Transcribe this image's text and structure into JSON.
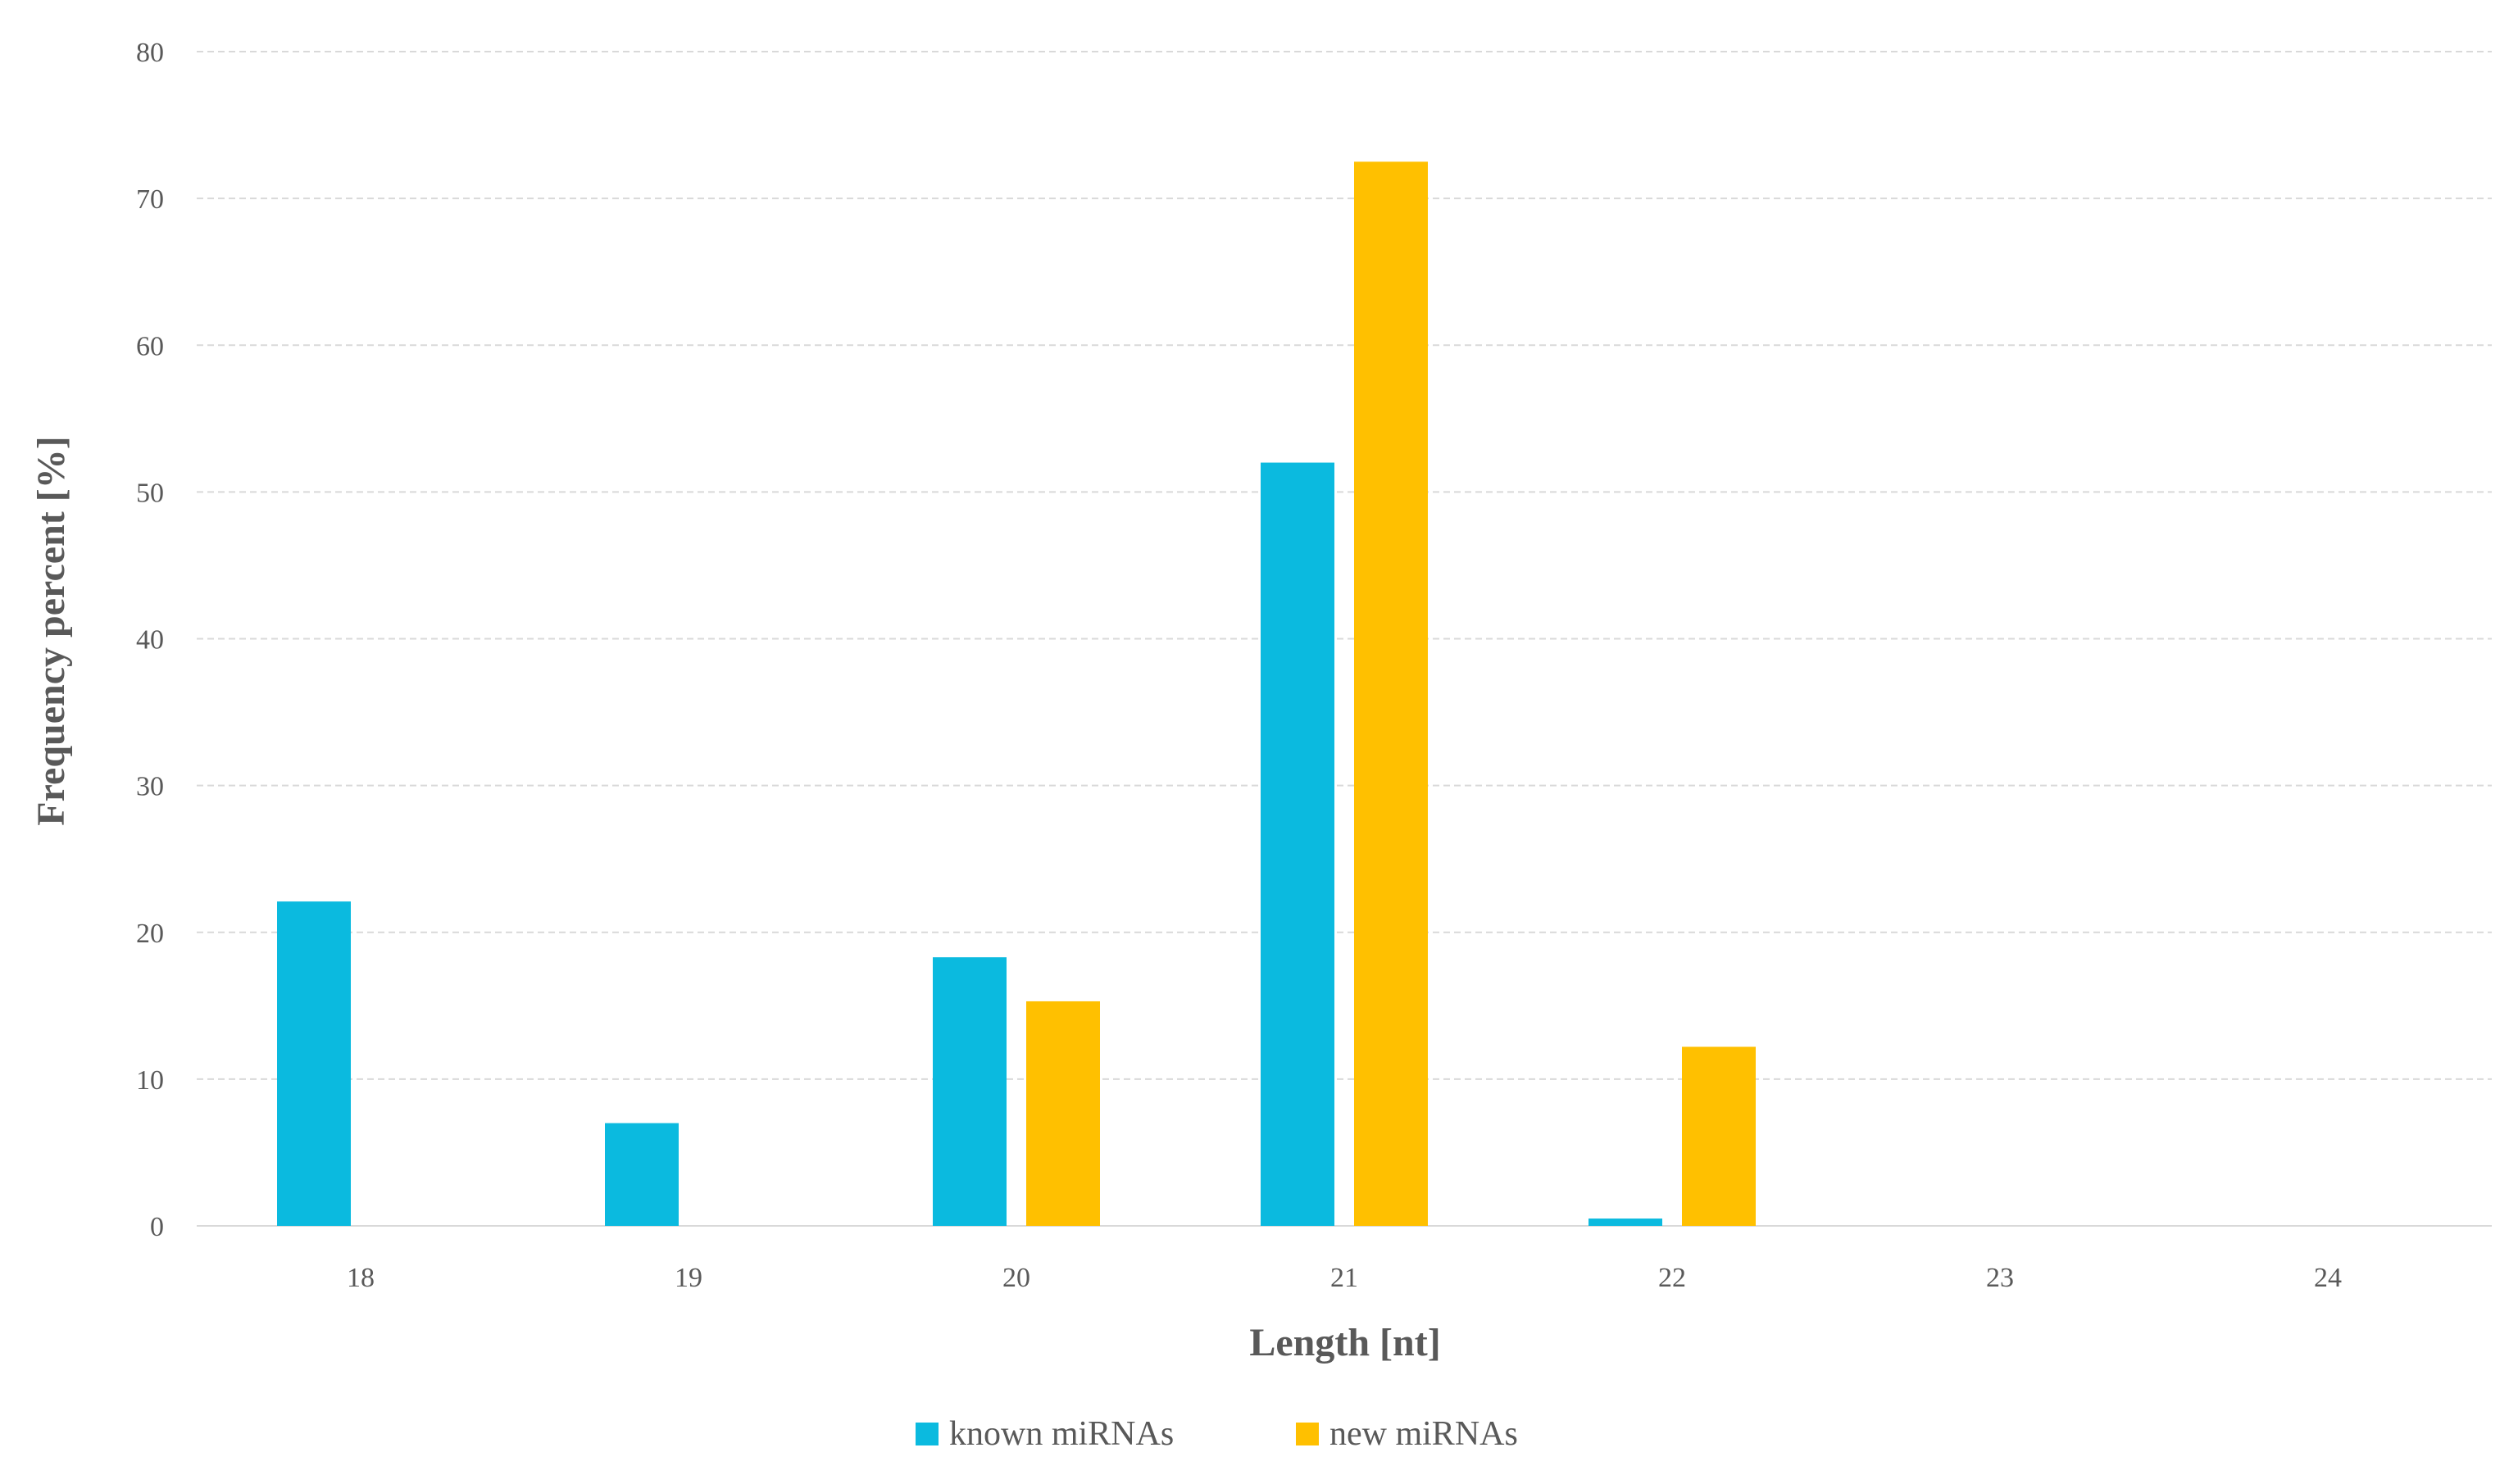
{
  "chart_data": {
    "type": "bar",
    "title": "",
    "xlabel": "Length [nt]",
    "ylabel": "Frequency percent [%]",
    "categories": [
      "18",
      "19",
      "20",
      "21",
      "22",
      "23",
      "24"
    ],
    "ylim": [
      0,
      80
    ],
    "yticks": [
      "0",
      "10",
      "20",
      "30",
      "40",
      "50",
      "60",
      "70",
      "80"
    ],
    "grid": true,
    "legend_position": "bottom",
    "series": [
      {
        "name": "known miRNAs",
        "color": "#0bbadf",
        "values": [
          22.1,
          7.0,
          18.3,
          52.0,
          0.5,
          0,
          0
        ]
      },
      {
        "name": "new miRNAs",
        "color": "#ffc000",
        "values": [
          0,
          0,
          15.3,
          72.5,
          12.2,
          0,
          0
        ]
      }
    ]
  }
}
